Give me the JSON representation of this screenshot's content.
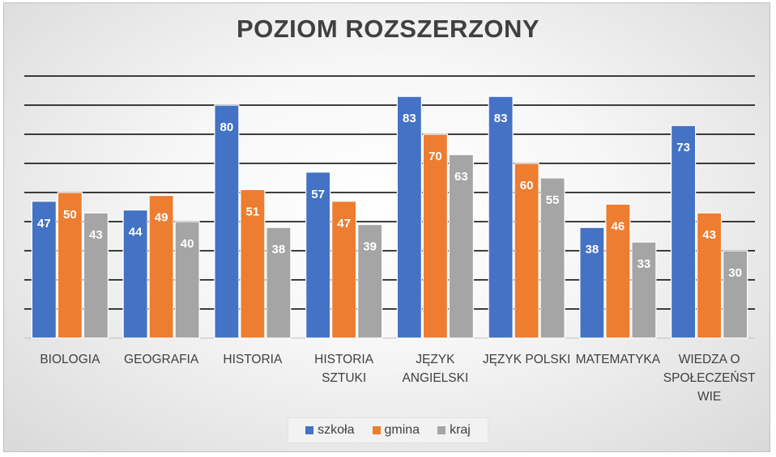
{
  "chart_data": {
    "type": "bar",
    "title": "POZIOM ROZSZERZONY",
    "categories": [
      [
        "BIOLOGIA"
      ],
      [
        "GEOGRAFIA"
      ],
      [
        "HISTORIA"
      ],
      [
        "HISTORIA",
        "SZTUKI"
      ],
      [
        "JĘZYK",
        "ANGIELSKI"
      ],
      [
        "JĘZYK POLSKI"
      ],
      [
        "MATEMATYKA"
      ],
      [
        "WIEDZA O",
        "SPOŁECZEŃST",
        "WIE"
      ]
    ],
    "series": [
      {
        "name": "szkoła",
        "color": "#4472c4",
        "values": [
          47,
          44,
          80,
          57,
          83,
          83,
          38,
          73
        ]
      },
      {
        "name": "gmina",
        "color": "#ed7d31",
        "values": [
          50,
          49,
          51,
          47,
          70,
          60,
          46,
          43
        ]
      },
      {
        "name": "kraj",
        "color": "#a5a5a5",
        "values": [
          43,
          40,
          38,
          39,
          63,
          55,
          33,
          30
        ]
      }
    ],
    "ylim": [
      0,
      90
    ],
    "grid": true,
    "legend_position": "bottom",
    "data_labels": true
  }
}
